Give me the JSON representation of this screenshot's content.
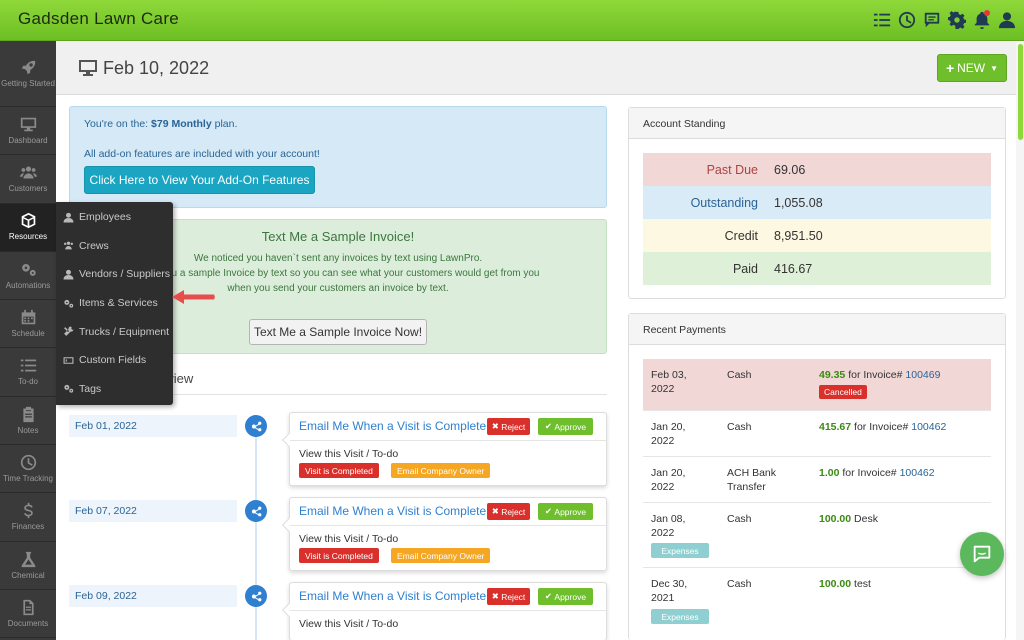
{
  "app": {
    "title": "Gadsden Lawn Care"
  },
  "topbar_icons": [
    "checklist-icon",
    "clock-icon",
    "chat-icon",
    "gear-icon",
    "bell-icon",
    "user-icon"
  ],
  "sidebar": {
    "items": [
      {
        "label": "Getting Started",
        "icon": "rocket-icon"
      },
      {
        "label": "Dashboard",
        "icon": "monitor-icon"
      },
      {
        "label": "Customers",
        "icon": "users-icon"
      },
      {
        "label": "Resources",
        "icon": "cube-icon",
        "active": true
      },
      {
        "label": "Automations",
        "icon": "cogs-icon"
      },
      {
        "label": "Schedule",
        "icon": "calendar-icon"
      },
      {
        "label": "To-do",
        "icon": "list-icon"
      },
      {
        "label": "Notes",
        "icon": "clipboard-icon"
      },
      {
        "label": "Time Tracking",
        "icon": "clock-icon"
      },
      {
        "label": "Finances",
        "icon": "dollar-icon"
      },
      {
        "label": "Chemical",
        "icon": "flask-icon"
      },
      {
        "label": "Documents",
        "icon": "document-icon"
      }
    ]
  },
  "flyout": {
    "items": [
      {
        "label": "Employees",
        "icon": "user-icon"
      },
      {
        "label": "Crews",
        "icon": "users-icon"
      },
      {
        "label": "Vendors / Suppliers",
        "icon": "user-icon"
      },
      {
        "label": "Items & Services",
        "icon": "cogs-icon"
      },
      {
        "label": "Trucks / Equipment",
        "icon": "tools-icon"
      },
      {
        "label": "Custom Fields",
        "icon": "textbox-icon"
      },
      {
        "label": "Tags",
        "icon": "cogs-icon"
      }
    ]
  },
  "header": {
    "date": "Feb 10, 2022",
    "new_label": "NEW"
  },
  "plan": {
    "line1_prefix": "You're on the:",
    "plan_name": "$79 Monthly",
    "line1_suffix": "plan.",
    "line2": "All add-on features are included with your account!",
    "button": "Click Here to View Your Add-On Features"
  },
  "sample": {
    "title": "Text Me a Sample Invoice!",
    "text": "We noticed you haven`t sent any invoices by text using LawnPro. ...send you a sample Invoice by text so you can see what your customers would get from you when you send your customers an invoice by text.",
    "line1": "We noticed you haven`t sent any invoices by text using LawnPro.",
    "line2": "send you a sample Invoice by text so you can see what your customers would get from you",
    "line3": "when you send your customers an invoice by text.",
    "button": "Text Me a Sample Invoice Now!"
  },
  "review": {
    "heading": "eview"
  },
  "timeline": [
    {
      "date": "Feb 01, 2022",
      "title": "Email Me When a Visit is Complete",
      "reject": "Reject",
      "approve": "Approve",
      "view": "View this Visit / To-do",
      "tag1": "Visit is Completed",
      "tag2": "Email Company Owner"
    },
    {
      "date": "Feb 07, 2022",
      "title": "Email Me When a Visit is Complete",
      "reject": "Reject",
      "approve": "Approve",
      "view": "View this Visit / To-do",
      "tag1": "Visit is Completed",
      "tag2": "Email Company Owner"
    },
    {
      "date": "Feb 09, 2022",
      "title": "Email Me When a Visit is Complete",
      "reject": "Reject",
      "approve": "Approve",
      "view": "View this Visit / To-do",
      "tag1": "Visit is Completed",
      "tag2": "Email Company Owner"
    }
  ],
  "account_standing": {
    "title": "Account Standing",
    "rows": [
      {
        "label": "Past Due",
        "value": "69.06"
      },
      {
        "label": "Outstanding",
        "value": "1,055.08"
      },
      {
        "label": "Credit",
        "value": "8,951.50"
      },
      {
        "label": "Paid",
        "value": "416.67"
      }
    ]
  },
  "recent_payments": {
    "title": "Recent Payments",
    "rows": [
      {
        "date_line1": "Feb 03,",
        "date_line2": "2022",
        "method_line1": "Cash",
        "method_line2": "",
        "amount": "49.35",
        "for_text": "for Invoice#",
        "invoice": "100469",
        "badge": "Cancelled"
      },
      {
        "date_line1": "Jan 20,",
        "date_line2": "2022",
        "method_line1": "Cash",
        "method_line2": "",
        "amount": "415.67",
        "for_text": "for Invoice#",
        "invoice": "100462",
        "badge": ""
      },
      {
        "date_line1": "Jan 20,",
        "date_line2": "2022",
        "method_line1": "ACH Bank",
        "method_line2": "Transfer",
        "amount": "1.00",
        "for_text": "for Invoice#",
        "invoice": "100462",
        "badge": ""
      },
      {
        "date_line1": "Jan 08,",
        "date_line2": "2022",
        "method_line1": "Cash",
        "method_line2": "",
        "amount": "100.00",
        "for_text": "Desk",
        "invoice": "",
        "badge": "Expenses"
      },
      {
        "date_line1": "Dec 30,",
        "date_line2": "2021",
        "method_line1": "Cash",
        "method_line2": "",
        "amount": "100.00",
        "for_text": "test",
        "invoice": "",
        "badge": "Expenses"
      }
    ]
  }
}
